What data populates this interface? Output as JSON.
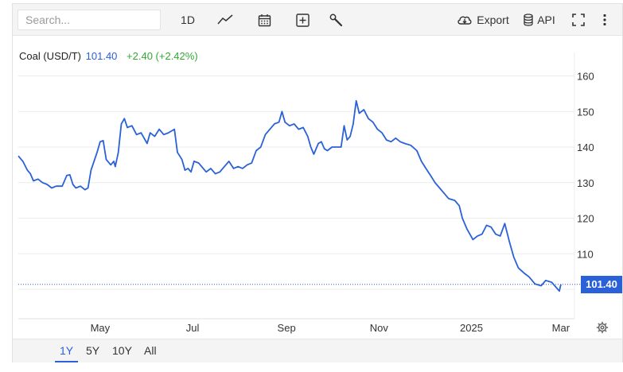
{
  "toolbar": {
    "search_placeholder": "Search...",
    "interval_label": "1D",
    "chart_type_icon": "line-chart-icon",
    "calendar_icon": "calendar-icon",
    "compare_icon": "plus-box-icon",
    "tools_icon": "wrench-icon",
    "export_label": "Export",
    "api_label": "API",
    "fullscreen_icon": "fullscreen-icon",
    "more_icon": "more-vertical-icon"
  },
  "legend": {
    "name": "Coal (USD/T)",
    "price": "101.40",
    "change": "+2.40 (+2.42%)"
  },
  "price_tag": "101.40",
  "range_buttons": [
    "1Y",
    "5Y",
    "10Y",
    "All"
  ],
  "active_range": "1Y",
  "colors": {
    "line": "#2a61d8",
    "change_up": "#32a832",
    "toolbar_bg": "#f4f4f4"
  },
  "chart_data": {
    "type": "line",
    "title": "",
    "xlabel": "",
    "ylabel": "",
    "ylim": [
      90,
      165
    ],
    "y_ticks": [
      110,
      120,
      130,
      140,
      150,
      160
    ],
    "y_tick_labels": [
      "110",
      "120",
      "130",
      "140",
      "150",
      "160"
    ],
    "x_range": [
      "2024-03-08",
      "2025-03-10"
    ],
    "x_ticks": [
      {
        "date": "2024-05-01",
        "label": "May"
      },
      {
        "date": "2024-07-01",
        "label": "Jul"
      },
      {
        "date": "2024-09-01",
        "label": "Sep"
      },
      {
        "date": "2024-11-01",
        "label": "Nov"
      },
      {
        "date": "2025-01-01",
        "label": "2025"
      },
      {
        "date": "2025-03-01",
        "label": "Mar"
      }
    ],
    "last_value": 101.4,
    "grid": true,
    "series": [
      {
        "name": "Coal (USD/T)",
        "points": [
          [
            "2024-03-08",
            137.5
          ],
          [
            "2024-03-11",
            136.0
          ],
          [
            "2024-03-14",
            133.5
          ],
          [
            "2024-03-16",
            132.5
          ],
          [
            "2024-03-18",
            130.5
          ],
          [
            "2024-03-21",
            131.0
          ],
          [
            "2024-03-24",
            130.0
          ],
          [
            "2024-03-27",
            129.5
          ],
          [
            "2024-03-30",
            128.5
          ],
          [
            "2024-04-02",
            129.0
          ],
          [
            "2024-04-06",
            129.0
          ],
          [
            "2024-04-09",
            132.0
          ],
          [
            "2024-04-11",
            132.2
          ],
          [
            "2024-04-13",
            129.5
          ],
          [
            "2024-04-15",
            128.5
          ],
          [
            "2024-04-18",
            129.0
          ],
          [
            "2024-04-21",
            128.0
          ],
          [
            "2024-04-23",
            128.5
          ],
          [
            "2024-04-25",
            133.5
          ],
          [
            "2024-04-27",
            136.0
          ],
          [
            "2024-04-29",
            138.5
          ],
          [
            "2024-05-01",
            141.5
          ],
          [
            "2024-05-03",
            141.8
          ],
          [
            "2024-05-05",
            136.5
          ],
          [
            "2024-05-08",
            135.0
          ],
          [
            "2024-05-10",
            136.0
          ],
          [
            "2024-05-11",
            134.5
          ],
          [
            "2024-05-13",
            138.5
          ],
          [
            "2024-05-15",
            146.5
          ],
          [
            "2024-05-17",
            148.0
          ],
          [
            "2024-05-19",
            145.5
          ],
          [
            "2024-05-22",
            146.0
          ],
          [
            "2024-05-25",
            143.5
          ],
          [
            "2024-05-28",
            144.0
          ],
          [
            "2024-06-01",
            141.0
          ],
          [
            "2024-06-03",
            144.0
          ],
          [
            "2024-06-06",
            143.0
          ],
          [
            "2024-06-09",
            145.0
          ],
          [
            "2024-06-12",
            143.5
          ],
          [
            "2024-06-15",
            144.0
          ],
          [
            "2024-06-19",
            145.0
          ],
          [
            "2024-06-21",
            138.5
          ],
          [
            "2024-06-24",
            136.5
          ],
          [
            "2024-06-26",
            133.5
          ],
          [
            "2024-06-28",
            134.0
          ],
          [
            "2024-06-30",
            133.0
          ],
          [
            "2024-07-02",
            136.0
          ],
          [
            "2024-07-05",
            135.5
          ],
          [
            "2024-07-08",
            134.0
          ],
          [
            "2024-07-10",
            133.0
          ],
          [
            "2024-07-13",
            134.0
          ],
          [
            "2024-07-16",
            132.5
          ],
          [
            "2024-07-19",
            133.0
          ],
          [
            "2024-07-22",
            134.5
          ],
          [
            "2024-07-25",
            136.0
          ],
          [
            "2024-07-28",
            134.0
          ],
          [
            "2024-07-31",
            134.5
          ],
          [
            "2024-08-03",
            134.0
          ],
          [
            "2024-08-06",
            135.0
          ],
          [
            "2024-08-09",
            135.5
          ],
          [
            "2024-08-12",
            139.0
          ],
          [
            "2024-08-15",
            140.0
          ],
          [
            "2024-08-18",
            143.5
          ],
          [
            "2024-08-21",
            145.0
          ],
          [
            "2024-08-24",
            146.5
          ],
          [
            "2024-08-27",
            147.0
          ],
          [
            "2024-08-29",
            150.0
          ],
          [
            "2024-08-31",
            147.0
          ],
          [
            "2024-09-03",
            146.0
          ],
          [
            "2024-09-06",
            146.5
          ],
          [
            "2024-09-09",
            145.0
          ],
          [
            "2024-09-12",
            145.5
          ],
          [
            "2024-09-15",
            143.0
          ],
          [
            "2024-09-17",
            140.0
          ],
          [
            "2024-09-19",
            138.0
          ],
          [
            "2024-09-22",
            141.0
          ],
          [
            "2024-09-24",
            141.5
          ],
          [
            "2024-09-26",
            139.5
          ],
          [
            "2024-09-28",
            139.0
          ],
          [
            "2024-10-01",
            140.0
          ],
          [
            "2024-10-04",
            140.0
          ],
          [
            "2024-10-07",
            140.0
          ],
          [
            "2024-10-09",
            146.0
          ],
          [
            "2024-10-11",
            142.0
          ],
          [
            "2024-10-13",
            143.0
          ],
          [
            "2024-10-15",
            146.5
          ],
          [
            "2024-10-17",
            153.0
          ],
          [
            "2024-10-19",
            149.5
          ],
          [
            "2024-10-22",
            150.5
          ],
          [
            "2024-10-25",
            148.0
          ],
          [
            "2024-10-28",
            147.0
          ],
          [
            "2024-10-31",
            145.0
          ],
          [
            "2024-11-03",
            144.0
          ],
          [
            "2024-11-06",
            142.0
          ],
          [
            "2024-11-09",
            141.5
          ],
          [
            "2024-11-12",
            142.5
          ],
          [
            "2024-11-15",
            141.5
          ],
          [
            "2024-11-18",
            141.0
          ],
          [
            "2024-11-22",
            140.5
          ],
          [
            "2024-11-26",
            139.0
          ],
          [
            "2024-11-29",
            136.0
          ],
          [
            "2024-12-02",
            134.0
          ],
          [
            "2024-12-05",
            132.0
          ],
          [
            "2024-12-08",
            130.0
          ],
          [
            "2024-12-11",
            128.5
          ],
          [
            "2024-12-14",
            127.0
          ],
          [
            "2024-12-17",
            125.5
          ],
          [
            "2024-12-21",
            125.0
          ],
          [
            "2024-12-24",
            123.5
          ],
          [
            "2024-12-26",
            120.0
          ],
          [
            "2024-12-29",
            117.0
          ],
          [
            "2025-01-02",
            114.0
          ],
          [
            "2025-01-05",
            115.0
          ],
          [
            "2025-01-08",
            115.5
          ],
          [
            "2025-01-11",
            118.0
          ],
          [
            "2025-01-14",
            117.5
          ],
          [
            "2025-01-17",
            115.5
          ],
          [
            "2025-01-20",
            115.0
          ],
          [
            "2025-01-23",
            118.5
          ],
          [
            "2025-01-26",
            113.5
          ],
          [
            "2025-01-29",
            109.0
          ],
          [
            "2025-02-01",
            106.0
          ],
          [
            "2025-02-05",
            104.5
          ],
          [
            "2025-02-08",
            103.5
          ],
          [
            "2025-02-12",
            101.5
          ],
          [
            "2025-02-16",
            101.0
          ],
          [
            "2025-02-19",
            102.5
          ],
          [
            "2025-02-23",
            102.0
          ],
          [
            "2025-02-25",
            101.0
          ],
          [
            "2025-02-28",
            99.5
          ],
          [
            "2025-03-01",
            101.4
          ]
        ]
      }
    ]
  }
}
